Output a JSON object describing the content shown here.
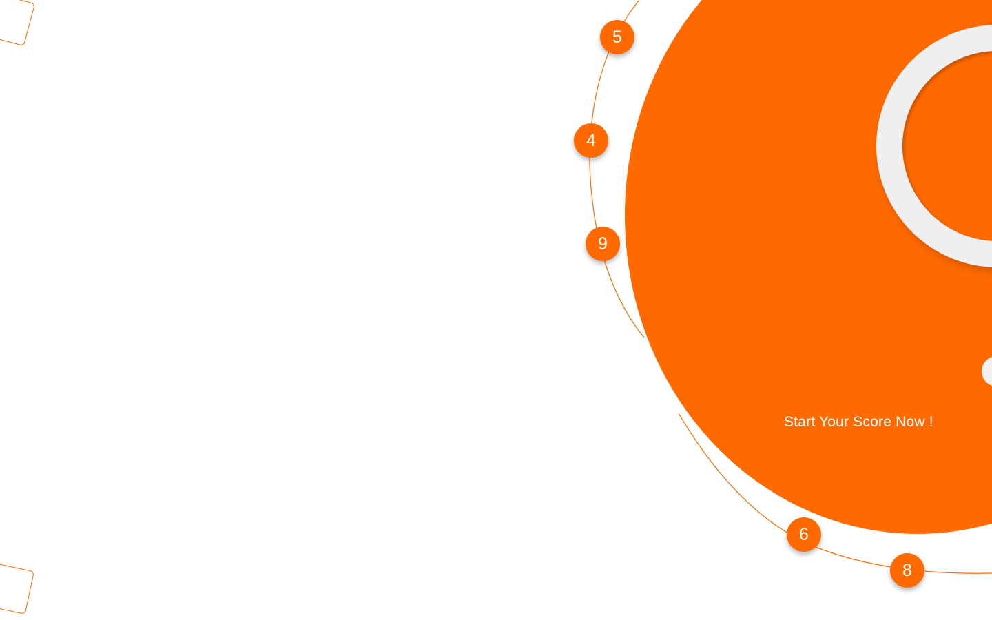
{
  "colors": {
    "accent": "#ff6a00",
    "ring": "#efefef",
    "background": "#ffffff",
    "text_on_accent": "#ffffff"
  },
  "orbit": {
    "numbers": [
      "5",
      "4",
      "9",
      "6",
      "8"
    ]
  },
  "cta": {
    "label": "Start Your Score Now !"
  }
}
